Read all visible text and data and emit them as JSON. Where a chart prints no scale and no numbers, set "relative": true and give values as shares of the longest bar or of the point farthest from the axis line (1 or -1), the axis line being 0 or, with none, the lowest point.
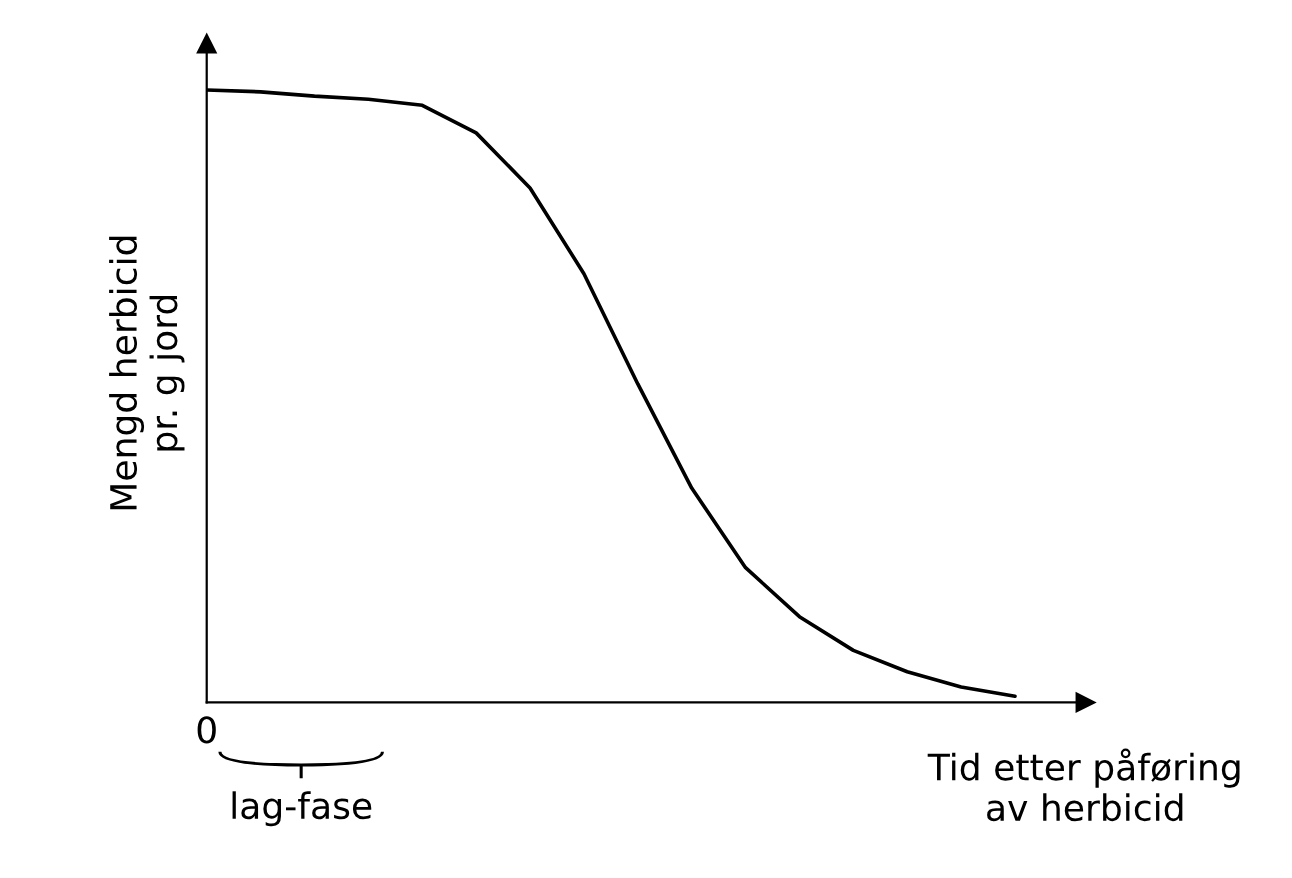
{
  "chart_data": {
    "type": "line",
    "relative": true,
    "xlabel": "Tid etter påføring\nav herbicid",
    "ylabel": "Mengd herbicid\npr. g jord",
    "categories": [
      null,
      null,
      null,
      null,
      null,
      null,
      null,
      null,
      null,
      null,
      null,
      null,
      null,
      null,
      null,
      null
    ],
    "values": [
      1.0,
      0.997,
      0.99,
      0.985,
      0.975,
      0.93,
      0.84,
      0.7,
      0.52,
      0.35,
      0.22,
      0.14,
      0.085,
      0.05,
      0.025,
      0.01
    ],
    "color": "#000000",
    "annotations": [
      "0",
      "lag-fase"
    ]
  }
}
